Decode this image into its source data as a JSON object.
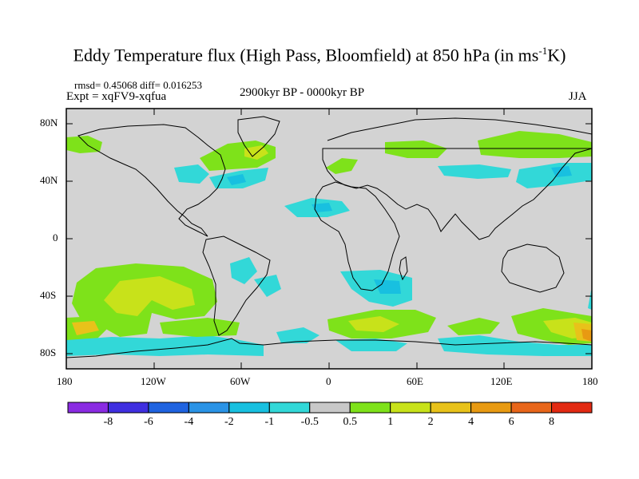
{
  "title": {
    "main": "Eddy Temperature flux (High Pass, Bloomfield) at 850 hPa (in ms",
    "superscript": "-1",
    "tail": "K)"
  },
  "stats": "rmsd= 0.45068 diff= 0.016253",
  "experiment": "Expt = xqFV9-xqfua",
  "period": "2900kyr BP - 0000kyr BP",
  "season": "JJA",
  "lat_labels": [
    "80N",
    "40N",
    "0",
    "40S",
    "80S"
  ],
  "lon_labels": [
    "180",
    "120W",
    "60W",
    "0",
    "60E",
    "120E",
    "180"
  ],
  "colorbar": {
    "labels": [
      "-8",
      "-6",
      "-4",
      "-2",
      "-1",
      "-0.5",
      "0.5",
      "1",
      "2",
      "4",
      "6",
      "8"
    ],
    "colors": [
      "#8a2be2",
      "#3f2fe0",
      "#1f63e0",
      "#2a93e6",
      "#18c0e0",
      "#32d8d8",
      "#c8c8c8",
      "#7ee21a",
      "#c8e21a",
      "#e8c21a",
      "#e89a12",
      "#e8661a",
      "#e22a12"
    ]
  },
  "map": {
    "background": "#d3d3d3",
    "coastline": "#000000"
  }
}
